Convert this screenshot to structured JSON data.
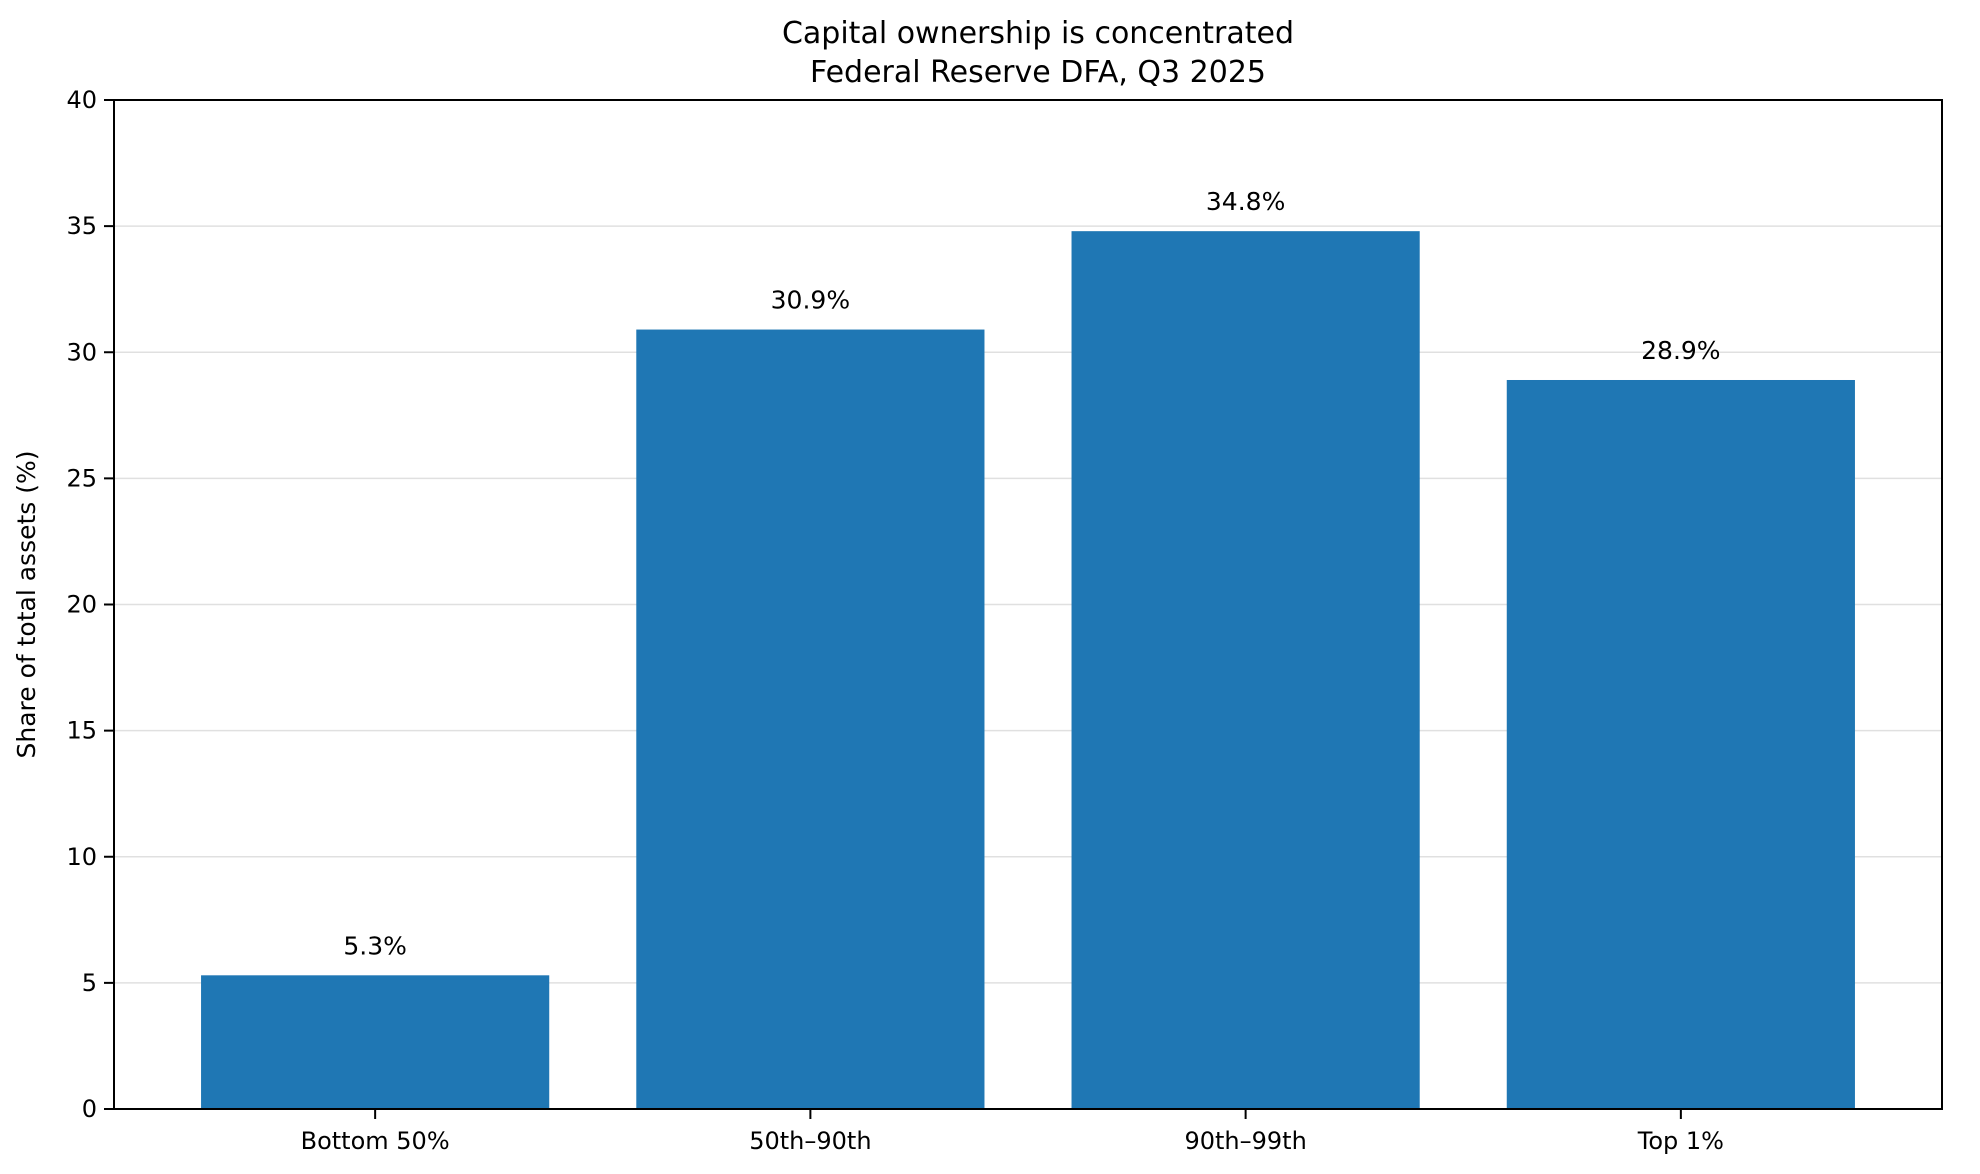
{
  "chart_data": {
    "type": "bar",
    "title": [
      "Capital ownership is concentrated",
      "Federal Reserve DFA, Q3 2025"
    ],
    "xlabel": "",
    "ylabel": "Share of total assets (%)",
    "categories": [
      "Bottom 50%",
      "50th–90th",
      "90th–99th",
      "Top 1%"
    ],
    "values": [
      5.3,
      30.9,
      34.8,
      28.9
    ],
    "value_labels": [
      "5.3%",
      "30.9%",
      "34.8%",
      "28.9%"
    ],
    "ylim": [
      0,
      40
    ],
    "yticks": [
      0,
      5,
      10,
      15,
      20,
      25,
      30,
      35,
      40
    ],
    "grid": "horizontal",
    "bar_color": "#1f77b4"
  }
}
